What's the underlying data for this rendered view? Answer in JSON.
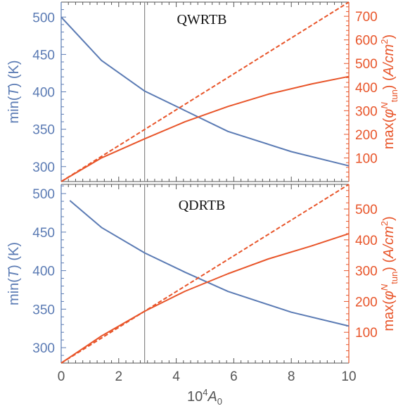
{
  "colors": {
    "left_axis": "#5b7bb4",
    "right_axis": "#e8552a",
    "frame": "#555555",
    "marker_line": "#888888",
    "text_gray": "#555555"
  },
  "x_axis": {
    "label_prefix": "10",
    "label_exp": "4",
    "label_var": "A",
    "label_sub": "0"
  },
  "left_axis_label": {
    "pre": "min(",
    "var": "T",
    "post": ") (K)"
  },
  "right_axis_label": {
    "pre": "max(",
    "phi": "φ",
    "sup": "N",
    "sub": "tun",
    "post": ") (",
    "unit": "A/cm",
    "unit_exp": "2",
    "close": ")"
  },
  "chart_data": [
    {
      "type": "line",
      "title": "QWRTB",
      "xlim": [
        0,
        10
      ],
      "ylim_left": [
        280,
        520
      ],
      "ylim_right": [
        0,
        760
      ],
      "x_ticks": [
        0,
        2,
        4,
        6,
        8,
        10
      ],
      "left_ticks": [
        300,
        350,
        400,
        450,
        500
      ],
      "right_ticks": [
        100,
        200,
        300,
        400,
        500,
        600,
        700
      ],
      "vline_x": 2.9,
      "series": [
        {
          "axis": "left",
          "style": "solid",
          "x": [
            0,
            1.4,
            2.9,
            4.3,
            5.8,
            8.0,
            10.0
          ],
          "values": [
            500,
            442,
            401,
            375,
            347,
            320,
            301
          ]
        },
        {
          "axis": "right",
          "style": "solid",
          "x": [
            0,
            1.4,
            2.9,
            4.3,
            5.8,
            7.2,
            8.7,
            10.0
          ],
          "values": [
            0,
            100,
            181,
            253,
            318,
            370,
            413,
            445
          ]
        },
        {
          "axis": "right",
          "style": "dashed",
          "x": [
            0,
            10
          ],
          "values": [
            0,
            760
          ]
        }
      ]
    },
    {
      "type": "line",
      "title": "QDRTB",
      "xlim": [
        0,
        10
      ],
      "ylim_left": [
        280,
        512
      ],
      "ylim_right": [
        0,
        580
      ],
      "x_ticks": [
        0,
        2,
        4,
        6,
        8,
        10
      ],
      "left_ticks": [
        300,
        350,
        400,
        450,
        500
      ],
      "right_ticks": [
        100,
        200,
        300,
        400,
        500
      ],
      "vline_x": 2.9,
      "series": [
        {
          "axis": "left",
          "style": "solid",
          "x": [
            0.3,
            1.4,
            2.9,
            4.3,
            5.8,
            8.0,
            10.0
          ],
          "values": [
            491,
            456,
            423,
            398,
            373,
            346,
            328
          ]
        },
        {
          "axis": "right",
          "style": "solid",
          "x": [
            0,
            1.4,
            2.9,
            4.3,
            5.8,
            7.2,
            8.7,
            10.0
          ],
          "values": [
            0,
            88,
            168,
            233,
            290,
            338,
            380,
            420
          ]
        },
        {
          "axis": "right",
          "style": "dashed",
          "x": [
            0,
            10
          ],
          "values": [
            0,
            580
          ]
        }
      ]
    }
  ]
}
